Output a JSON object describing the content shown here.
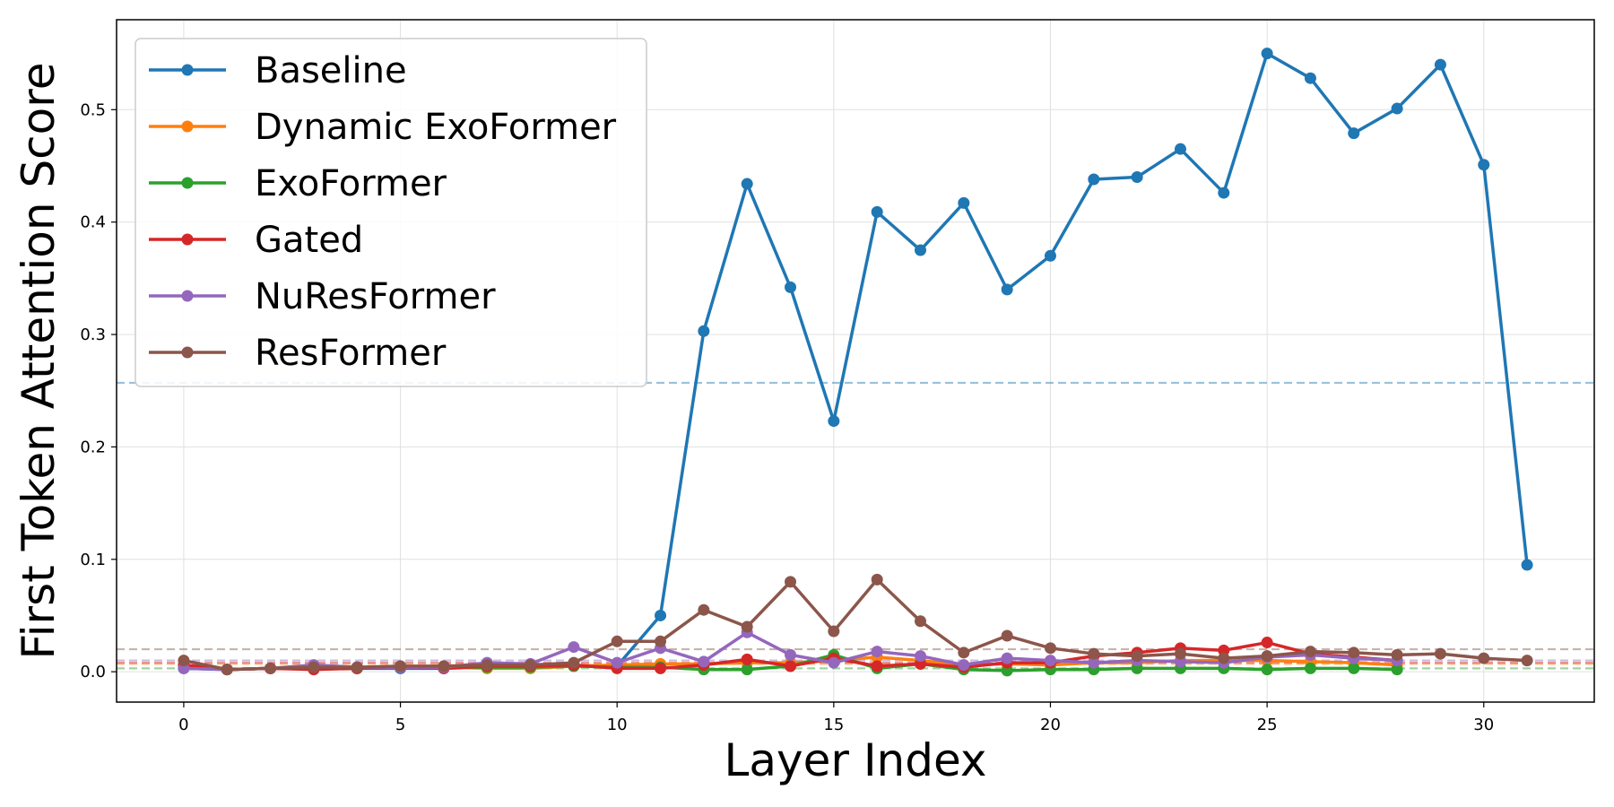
{
  "chart_data": {
    "type": "line",
    "title": "",
    "xlabel": "Layer Index",
    "ylabel": "First Token Attention Score",
    "xlim": [
      -1.55,
      32.55
    ],
    "ylim": [
      -0.027,
      0.58
    ],
    "xticks": [
      0,
      5,
      10,
      15,
      20,
      25,
      30
    ],
    "yticks": [
      0.0,
      0.1,
      0.2,
      0.3,
      0.4,
      0.5
    ],
    "grid": true,
    "legend_position": "top-left",
    "series": [
      {
        "name": "Baseline",
        "color": "#1f77b4",
        "mean": 0.257,
        "x": [
          0,
          1,
          2,
          3,
          4,
          5,
          6,
          7,
          8,
          9,
          10,
          11,
          12,
          13,
          14,
          15,
          16,
          17,
          18,
          19,
          20,
          21,
          22,
          23,
          24,
          25,
          26,
          27,
          28,
          29,
          30,
          31
        ],
        "values": [
          0.003,
          0.002,
          0.003,
          0.003,
          0.003,
          0.003,
          0.003,
          0.004,
          0.004,
          0.005,
          0.005,
          0.05,
          0.303,
          0.434,
          0.342,
          0.223,
          0.409,
          0.375,
          0.417,
          0.34,
          0.37,
          0.438,
          0.44,
          0.465,
          0.426,
          0.55,
          0.528,
          0.479,
          0.501,
          0.54,
          0.451,
          0.095
        ]
      },
      {
        "name": "Dynamic ExoFormer",
        "color": "#ff7f0e",
        "mean": 0.007,
        "x": [
          0,
          1,
          2,
          3,
          4,
          5,
          6,
          7,
          8,
          9,
          10,
          11,
          12,
          13,
          14,
          15,
          16,
          17,
          18,
          19,
          20,
          21,
          22,
          23,
          24,
          25,
          26,
          27,
          28
        ],
        "values": [
          0.005,
          0.002,
          0.003,
          0.003,
          0.003,
          0.004,
          0.004,
          0.003,
          0.003,
          0.005,
          0.006,
          0.007,
          0.007,
          0.008,
          0.008,
          0.01,
          0.013,
          0.01,
          0.006,
          0.007,
          0.006,
          0.008,
          0.008,
          0.01,
          0.01,
          0.01,
          0.009,
          0.008,
          0.006
        ]
      },
      {
        "name": "ExoFormer",
        "color": "#2ca02c",
        "mean": 0.003,
        "x": [
          0,
          1,
          2,
          3,
          4,
          5,
          6,
          7,
          8,
          9,
          10,
          11,
          12,
          13,
          14,
          15,
          16,
          17,
          18,
          19,
          20,
          21,
          22,
          23,
          24,
          25,
          26,
          27,
          28
        ],
        "values": [
          0.005,
          0.002,
          0.003,
          0.003,
          0.003,
          0.004,
          0.004,
          0.004,
          0.004,
          0.005,
          0.004,
          0.004,
          0.002,
          0.002,
          0.005,
          0.015,
          0.003,
          0.007,
          0.002,
          0.001,
          0.002,
          0.002,
          0.003,
          0.003,
          0.003,
          0.002,
          0.003,
          0.003,
          0.002
        ]
      },
      {
        "name": "Gated",
        "color": "#d62728",
        "mean": 0.008,
        "x": [
          0,
          1,
          2,
          3,
          4,
          5,
          6,
          7,
          8,
          9,
          10,
          11,
          12,
          13,
          14,
          15,
          16,
          17,
          18,
          19,
          20,
          21,
          22,
          23,
          24,
          25,
          26,
          27,
          28
        ],
        "values": [
          0.006,
          0.002,
          0.003,
          0.002,
          0.003,
          0.004,
          0.003,
          0.005,
          0.005,
          0.006,
          0.003,
          0.003,
          0.006,
          0.011,
          0.005,
          0.012,
          0.005,
          0.007,
          0.004,
          0.008,
          0.008,
          0.014,
          0.017,
          0.021,
          0.019,
          0.026,
          0.016,
          0.013,
          0.01
        ]
      },
      {
        "name": "NuResFormer",
        "color": "#9467bd",
        "mean": 0.01,
        "x": [
          0,
          1,
          2,
          3,
          4,
          5,
          6,
          7,
          8,
          9,
          10,
          11,
          12,
          13,
          14,
          15,
          16,
          17,
          18,
          19,
          20,
          21,
          22,
          23,
          24,
          25,
          26,
          27,
          28
        ],
        "values": [
          0.003,
          0.002,
          0.003,
          0.006,
          0.004,
          0.004,
          0.004,
          0.008,
          0.007,
          0.022,
          0.008,
          0.021,
          0.009,
          0.035,
          0.015,
          0.008,
          0.018,
          0.014,
          0.006,
          0.012,
          0.01,
          0.008,
          0.01,
          0.009,
          0.008,
          0.013,
          0.015,
          0.012,
          0.01
        ]
      },
      {
        "name": "ResFormer",
        "color": "#8c564b",
        "mean": 0.02,
        "x": [
          0,
          1,
          2,
          3,
          4,
          5,
          6,
          7,
          8,
          9,
          10,
          11,
          12,
          13,
          14,
          15,
          16,
          17,
          18,
          19,
          20,
          21,
          22,
          23,
          24,
          25,
          26,
          27,
          28,
          29,
          30,
          31
        ],
        "values": [
          0.01,
          0.002,
          0.003,
          0.004,
          0.004,
          0.005,
          0.005,
          0.006,
          0.006,
          0.008,
          0.027,
          0.027,
          0.055,
          0.04,
          0.08,
          0.036,
          0.082,
          0.045,
          0.017,
          0.032,
          0.021,
          0.016,
          0.014,
          0.016,
          0.012,
          0.014,
          0.018,
          0.017,
          0.015,
          0.016,
          0.012,
          0.01
        ]
      }
    ]
  }
}
